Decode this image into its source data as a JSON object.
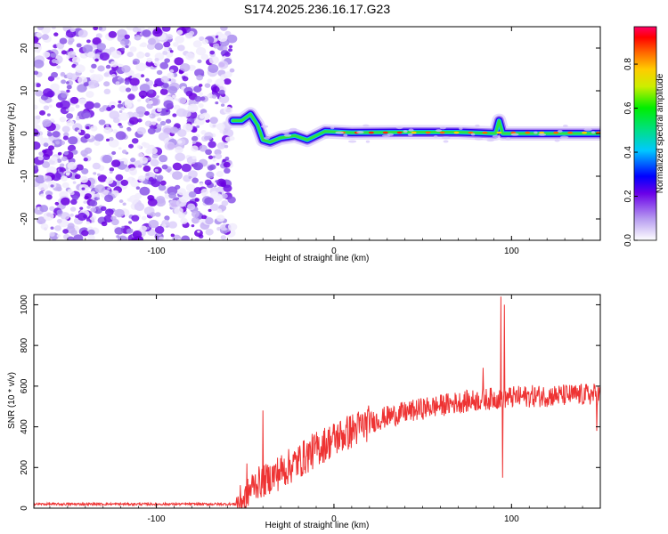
{
  "title": "S174.2025.236.16.17.G23",
  "chart_data": [
    {
      "type": "heatmap",
      "xlabel": "Height of straight line (km)",
      "ylabel": "Frequency (Hz)",
      "xlim": [
        -169,
        150
      ],
      "ylim": [
        -25,
        25
      ],
      "xticks": [
        -100,
        0,
        100
      ],
      "yticks": [
        -20,
        -10,
        0,
        10,
        20
      ],
      "colorbar": {
        "label": "Normalized spectral amplitude",
        "range": [
          0.0,
          0.97
        ],
        "ticks": [
          0.0,
          0.2,
          0.4,
          0.6,
          0.8
        ]
      },
      "noise_region_x": [
        -169,
        -57
      ],
      "signal_trace": [
        {
          "x": -57,
          "f": 3
        },
        {
          "x": -52,
          "f": 3
        },
        {
          "x": -47,
          "f": 4.5
        },
        {
          "x": -43,
          "f": 2
        },
        {
          "x": -40,
          "f": -1.5
        },
        {
          "x": -36,
          "f": -2
        },
        {
          "x": -30,
          "f": -1
        },
        {
          "x": -22,
          "f": -0.5
        },
        {
          "x": -15,
          "f": -1.5
        },
        {
          "x": -10,
          "f": -0.5
        },
        {
          "x": -5,
          "f": 0.5
        },
        {
          "x": 10,
          "f": 0.2
        },
        {
          "x": 40,
          "f": 0.3
        },
        {
          "x": 70,
          "f": 0.3
        },
        {
          "x": 91,
          "f": 0
        },
        {
          "x": 93,
          "f": 3
        },
        {
          "x": 95,
          "f": 0
        },
        {
          "x": 110,
          "f": 0
        },
        {
          "x": 130,
          "f": 0
        },
        {
          "x": 150,
          "f": 0
        }
      ]
    },
    {
      "type": "line",
      "xlabel": "Height of straight line (km)",
      "ylabel": "SNR (10 * v/v)",
      "xlim": [
        -169,
        150
      ],
      "ylim": [
        0,
        1050
      ],
      "xticks": [
        -100,
        0,
        100
      ],
      "yticks": [
        0,
        200,
        400,
        600,
        800,
        1000
      ],
      "color": "#ee3333",
      "trend": [
        {
          "x": -169,
          "y": 20
        },
        {
          "x": -55,
          "y": 20
        },
        {
          "x": -50,
          "y": 50
        },
        {
          "x": -45,
          "y": 120
        },
        {
          "x": -40,
          "y": 130
        },
        {
          "x": -30,
          "y": 180
        },
        {
          "x": -20,
          "y": 230
        },
        {
          "x": -10,
          "y": 290
        },
        {
          "x": 0,
          "y": 340
        },
        {
          "x": 10,
          "y": 380
        },
        {
          "x": 20,
          "y": 420
        },
        {
          "x": 30,
          "y": 450
        },
        {
          "x": 50,
          "y": 490
        },
        {
          "x": 70,
          "y": 520
        },
        {
          "x": 90,
          "y": 540
        },
        {
          "x": 110,
          "y": 550
        },
        {
          "x": 130,
          "y": 555
        },
        {
          "x": 150,
          "y": 560
        }
      ],
      "spikes": [
        {
          "x": -49,
          "y": 220
        },
        {
          "x": -40,
          "y": 480
        },
        {
          "x": 94,
          "y": 1040
        },
        {
          "x": 96,
          "y": 1000
        },
        {
          "x": 95,
          "y": 150
        },
        {
          "x": 84,
          "y": 690
        },
        {
          "x": 148,
          "y": 650
        },
        {
          "x": 148,
          "y": 380
        }
      ]
    }
  ]
}
